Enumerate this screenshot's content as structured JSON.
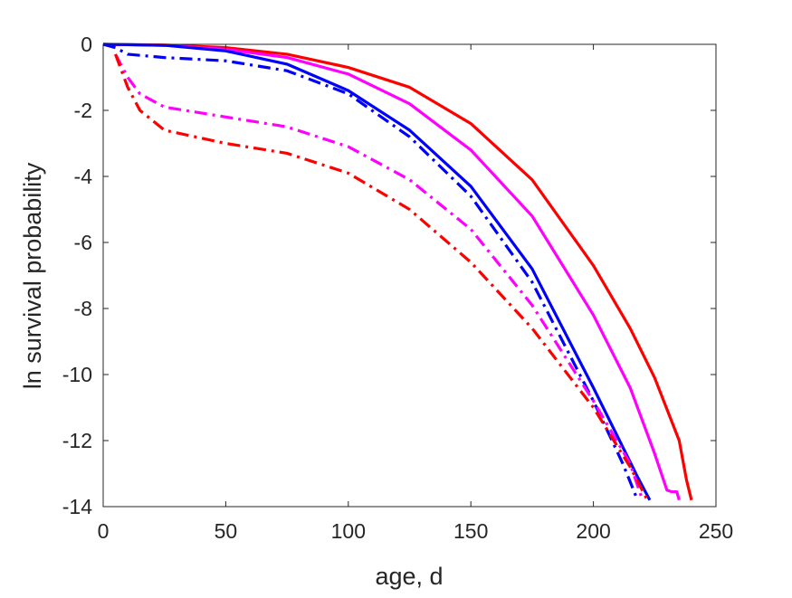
{
  "chart_data": {
    "type": "line",
    "title": "",
    "xlabel": "age, d",
    "ylabel": "ln survival probability",
    "xlim": [
      0,
      250
    ],
    "ylim": [
      -14,
      0
    ],
    "xticks": [
      0,
      50,
      100,
      150,
      200,
      250
    ],
    "yticks": [
      0,
      -2,
      -4,
      -6,
      -8,
      -10,
      -12,
      -14
    ],
    "xtick_labels": [
      "0",
      "50",
      "100",
      "150",
      "200",
      "250"
    ],
    "ytick_labels": [
      "0",
      "-2",
      "-4",
      "-6",
      "-8",
      "-10",
      "-12",
      "-14"
    ],
    "grid": false,
    "legend": "none",
    "box": true,
    "series": [
      {
        "color": "#ff0000",
        "style": "solid",
        "x": [
          0,
          25,
          50,
          75,
          100,
          125,
          150,
          175,
          200,
          215,
          225,
          235,
          238,
          240
        ],
        "y": [
          0,
          -0.02,
          -0.1,
          -0.3,
          -0.7,
          -1.3,
          -2.4,
          -4.1,
          -6.7,
          -8.6,
          -10.1,
          -12.0,
          -13.2,
          -13.8
        ]
      },
      {
        "color": "#ff00ff",
        "style": "solid",
        "x": [
          0,
          25,
          50,
          75,
          100,
          125,
          150,
          175,
          200,
          215,
          225,
          230,
          232,
          234,
          235
        ],
        "y": [
          0,
          -0.03,
          -0.15,
          -0.4,
          -0.9,
          -1.8,
          -3.2,
          -5.2,
          -8.2,
          -10.4,
          -12.4,
          -13.5,
          -13.55,
          -13.55,
          -13.8
        ]
      },
      {
        "color": "#0000ff",
        "style": "solid",
        "x": [
          0,
          25,
          50,
          75,
          100,
          125,
          150,
          175,
          200,
          210,
          218,
          223
        ],
        "y": [
          0,
          -0.03,
          -0.2,
          -0.6,
          -1.4,
          -2.6,
          -4.3,
          -6.8,
          -10.4,
          -11.9,
          -13.1,
          -13.8
        ]
      },
      {
        "color": "#0000ff",
        "style": "dashdot",
        "x": [
          0,
          5,
          10,
          25,
          50,
          75,
          100,
          125,
          150,
          175,
          200,
          212,
          218
        ],
        "y": [
          0,
          -0.1,
          -0.3,
          -0.4,
          -0.5,
          -0.8,
          -1.5,
          -2.8,
          -4.6,
          -7.2,
          -10.8,
          -12.7,
          -13.8
        ]
      },
      {
        "color": "#ff00ff",
        "style": "dashdot",
        "x": [
          5,
          10,
          15,
          25,
          50,
          75,
          100,
          125,
          150,
          175,
          200,
          215,
          220
        ],
        "y": [
          -0.3,
          -1.0,
          -1.5,
          -1.9,
          -2.2,
          -2.5,
          -3.1,
          -4.1,
          -5.6,
          -7.9,
          -10.8,
          -12.7,
          -13.8
        ]
      },
      {
        "color": "#ff0000",
        "style": "dashdot",
        "x": [
          5,
          10,
          15,
          25,
          50,
          75,
          100,
          125,
          150,
          175,
          200,
          215,
          222
        ],
        "y": [
          -0.3,
          -1.3,
          -2.0,
          -2.6,
          -3.0,
          -3.3,
          -3.9,
          -5.0,
          -6.6,
          -8.6,
          -11.0,
          -12.8,
          -13.8
        ]
      }
    ]
  }
}
